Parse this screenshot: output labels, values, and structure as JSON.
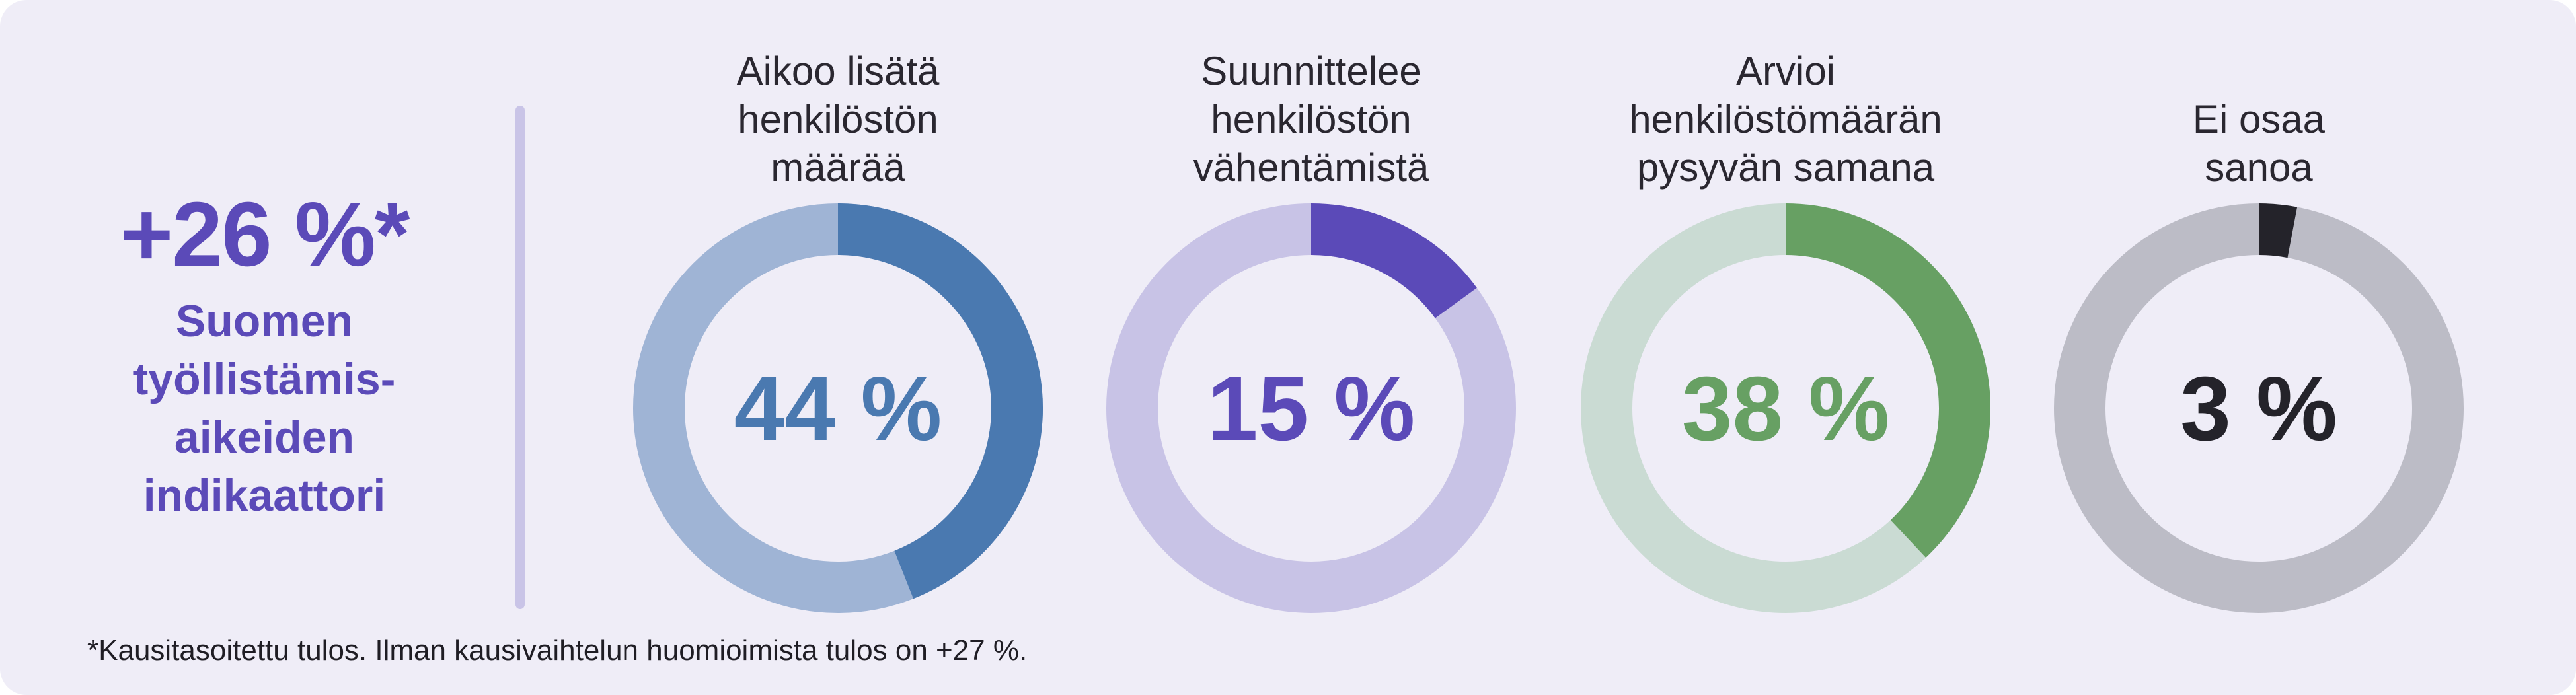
{
  "indicator": {
    "value": "+26 %*",
    "label_lines": [
      "Suomen",
      "työllistämis-",
      "aikeiden",
      "indikaattori"
    ],
    "color": "#5b4ab8"
  },
  "footnote": "*Kausitasoitettu tulos. Ilman kausivaihtelun huomioimista tulos on +27 %.",
  "chart_data": {
    "type": "pie",
    "series": [
      {
        "title_lines": [
          "Aikoo lisätä",
          "henkilöstön",
          "määrää"
        ],
        "value": 44,
        "value_label": "44 %",
        "color": "#4a79b0",
        "track_color": "#9fb4d5"
      },
      {
        "title_lines": [
          "Suunnittelee",
          "henkilöstön",
          "vähentämistä"
        ],
        "value": 15,
        "value_label": "15 %",
        "color": "#5b4ab8",
        "track_color": "#c8c3e6"
      },
      {
        "title_lines": [
          "Arvioi",
          "henkilöstömäärän",
          "pysyvän samana"
        ],
        "value": 38,
        "value_label": "38 %",
        "color": "#67a063",
        "track_color": "#cadbd3"
      },
      {
        "title_lines": [
          "Ei osaa",
          "sanoa"
        ],
        "value": 3,
        "value_label": "3 %",
        "color": "#24232a",
        "track_color": "#bcbcc6"
      }
    ]
  }
}
